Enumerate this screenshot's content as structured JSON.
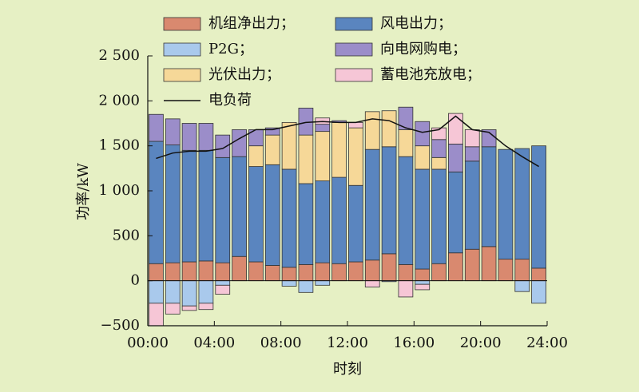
{
  "chart_data": {
    "type": "bar",
    "x": [
      0,
      1,
      2,
      3,
      4,
      5,
      6,
      7,
      8,
      9,
      10,
      11,
      12,
      13,
      14,
      15,
      16,
      17,
      18,
      19,
      20,
      21,
      22,
      23
    ],
    "xlabel": "时刻",
    "ylabel": "功率/kW",
    "xlim": [
      0,
      24
    ],
    "xticks": [
      {
        "value": 0,
        "label": "00:00"
      },
      {
        "value": 4,
        "label": "04:00"
      },
      {
        "value": 8,
        "label": "08:00"
      },
      {
        "value": 12,
        "label": "12:00"
      },
      {
        "value": 16,
        "label": "16:00"
      },
      {
        "value": 20,
        "label": "20:00"
      },
      {
        "value": 24,
        "label": "24:00"
      }
    ],
    "ylim": [
      -500,
      2500
    ],
    "yticks": [
      {
        "value": -500,
        "label": "−500"
      },
      0,
      500,
      {
        "value": 1000,
        "label": "1 000"
      },
      {
        "value": 1500,
        "label": "1 500"
      },
      {
        "value": 2000,
        "label": "2 000"
      },
      {
        "value": 2500,
        "label": "2 500"
      }
    ],
    "series": [
      {
        "name": "机组净出力；",
        "color": "#d9896f",
        "values": [
          190,
          200,
          210,
          220,
          200,
          270,
          210,
          170,
          150,
          180,
          200,
          190,
          210,
          230,
          300,
          180,
          130,
          190,
          310,
          350,
          380,
          240,
          240,
          140
        ]
      },
      {
        "name": "风电出力；",
        "color": "#5a85bf",
        "values": [
          1360,
          1310,
          1240,
          1230,
          1170,
          1110,
          1060,
          1120,
          1090,
          900,
          910,
          960,
          850,
          1230,
          1190,
          1200,
          1110,
          1050,
          900,
          980,
          1110,
          1220,
          1230,
          1360
        ]
      },
      {
        "name": "P2G；",
        "color": "#a9c9ec",
        "values": [
          -250,
          -250,
          -280,
          -250,
          -50,
          0,
          0,
          0,
          -60,
          -130,
          -50,
          0,
          0,
          0,
          -10,
          0,
          -40,
          0,
          0,
          0,
          0,
          0,
          -120,
          -250
        ]
      },
      {
        "name": "向电网购电；",
        "color": "#9b8dc9",
        "values": [
          300,
          290,
          300,
          300,
          250,
          300,
          180,
          80,
          0,
          300,
          80,
          20,
          0,
          0,
          0,
          250,
          270,
          200,
          310,
          160,
          190,
          0,
          0,
          0
        ]
      },
      {
        "name": "光伏出力；",
        "color": "#f6d898",
        "values": [
          0,
          0,
          0,
          0,
          0,
          0,
          230,
          330,
          520,
          540,
          550,
          610,
          640,
          420,
          400,
          300,
          260,
          130,
          0,
          0,
          0,
          0,
          0,
          0
        ]
      },
      {
        "name": "蓄电池充放电；",
        "color": "#f6c6d6",
        "values": [
          -250,
          -120,
          -50,
          -70,
          -100,
          0,
          0,
          0,
          0,
          0,
          70,
          0,
          60,
          -70,
          0,
          -180,
          -60,
          130,
          340,
          190,
          0,
          0,
          0,
          0
        ]
      }
    ],
    "line": {
      "name": "电负荷",
      "color": "#111111",
      "values": [
        1360,
        1420,
        1440,
        1440,
        1470,
        1580,
        1680,
        1680,
        1720,
        1760,
        1770,
        1760,
        1760,
        1800,
        1780,
        1700,
        1650,
        1680,
        1830,
        1680,
        1650,
        1500,
        1380,
        1270
      ]
    }
  }
}
